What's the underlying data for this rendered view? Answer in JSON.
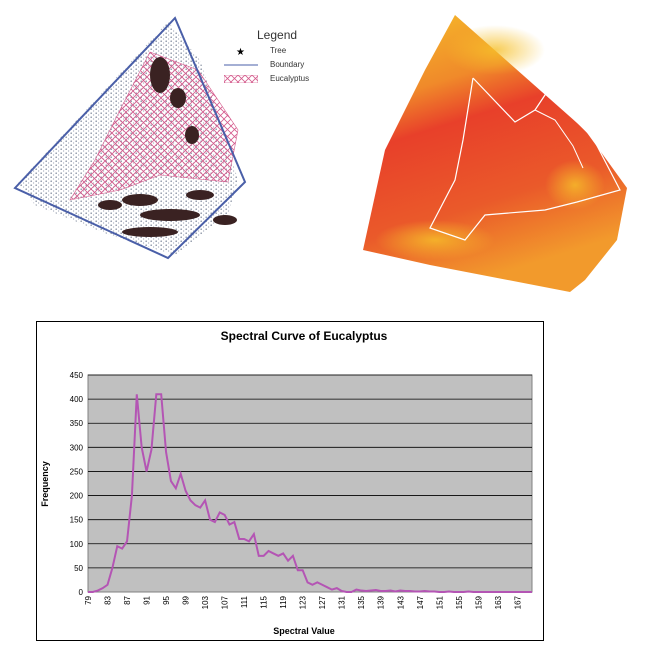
{
  "legend": {
    "title": "Legend",
    "items": [
      {
        "label": "Tree",
        "symbol": "star"
      },
      {
        "label": "Boundary",
        "symbol": "line"
      },
      {
        "label": "Eucalyptus",
        "symbol": "crosshatch"
      }
    ]
  },
  "colors": {
    "boundary": "#4a5fa8",
    "eucalyptus_hatch": "#d45a8c",
    "curve": "#b455b4",
    "plot_bg": "#c0c0c0",
    "heat_low": "#f6c02a",
    "heat_high": "#e8402a"
  },
  "chart_data": {
    "type": "line",
    "title": "Spectral Curve of Eucalyptus",
    "xlabel": "Spectral Value",
    "ylabel": "Frequency",
    "xlim": [
      79,
      170
    ],
    "ylim": [
      0,
      450
    ],
    "yticks": [
      0,
      50,
      100,
      150,
      200,
      250,
      300,
      350,
      400,
      450
    ],
    "xtick_labels": [
      "79",
      "83",
      "87",
      "91",
      "95",
      "99",
      "103",
      "107",
      "111",
      "115",
      "119",
      "123",
      "127",
      "131",
      "135",
      "139",
      "143",
      "147",
      "151",
      "155",
      "159",
      "163",
      "167"
    ],
    "grid": "horizontal",
    "legend": "none",
    "series": [
      {
        "x": [
          79,
          80,
          81,
          82,
          83,
          84,
          85,
          86,
          87,
          88,
          89,
          90,
          91,
          92,
          93,
          94,
          95,
          96,
          97,
          98,
          99,
          100,
          101,
          102,
          103,
          104,
          105,
          106,
          107,
          108,
          109,
          110,
          111,
          112,
          113,
          114,
          115,
          116,
          117,
          118,
          119,
          120,
          121,
          122,
          123,
          124,
          125,
          126,
          127,
          128,
          129,
          130,
          131,
          132,
          133,
          134,
          135,
          136,
          137,
          138,
          139,
          140,
          141,
          142,
          143,
          144,
          145,
          146,
          147,
          148,
          149,
          150,
          151,
          152,
          153,
          154,
          155,
          156,
          157,
          158,
          159,
          160,
          161,
          162,
          163,
          164,
          165,
          166,
          167,
          168,
          169,
          170
        ],
        "y": [
          0,
          0,
          3,
          8,
          15,
          50,
          95,
          90,
          105,
          200,
          410,
          300,
          250,
          295,
          410,
          410,
          290,
          230,
          215,
          245,
          210,
          190,
          180,
          175,
          190,
          150,
          145,
          165,
          160,
          140,
          145,
          110,
          110,
          105,
          120,
          75,
          75,
          85,
          80,
          75,
          80,
          65,
          75,
          45,
          45,
          20,
          15,
          20,
          15,
          10,
          5,
          8,
          2,
          0,
          0,
          5,
          3,
          2,
          3,
          4,
          2,
          2,
          3,
          1,
          3,
          2,
          2,
          1,
          1,
          2,
          1,
          1,
          0,
          0,
          1,
          0,
          0,
          0,
          1,
          0,
          0,
          0,
          0,
          0,
          0,
          0,
          0,
          0,
          0,
          0,
          0,
          0
        ]
      }
    ]
  }
}
